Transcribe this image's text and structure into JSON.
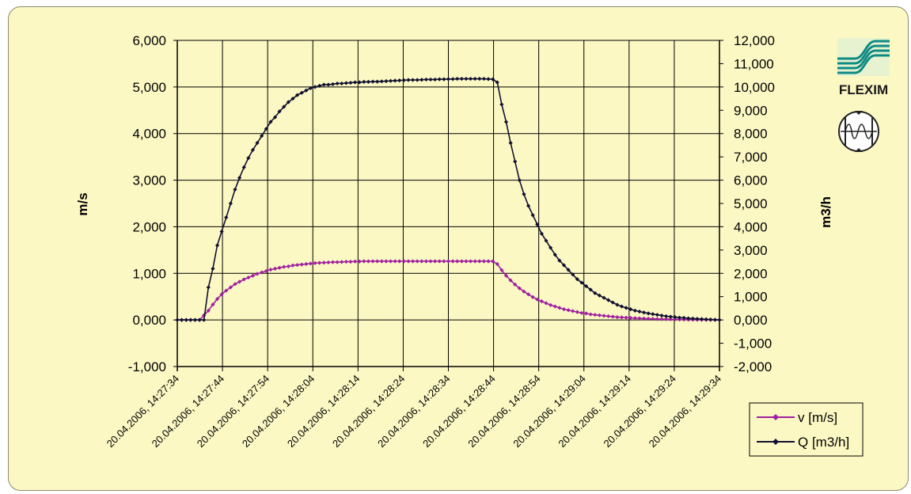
{
  "logo": {
    "brand": "FLEXIM"
  },
  "chart_data": {
    "type": "line",
    "ylabel": "m/s",
    "y2label": "m3/h",
    "ylim": [
      -1,
      6
    ],
    "y2lim": [
      -2000,
      12000
    ],
    "y_ticks": [
      "-1,000",
      "0,000",
      "1,000",
      "2,000",
      "3,000",
      "4,000",
      "5,000",
      "6,000"
    ],
    "y2_ticks": [
      "-2,000",
      "-1,000",
      "0,000",
      "1,000",
      "2,000",
      "3,000",
      "4,000",
      "5,000",
      "6,000",
      "7,000",
      "8,000",
      "9,000",
      "10,000",
      "11,000",
      "12,000"
    ],
    "x_ticks": [
      "20.04.2006, 14:27:34",
      "20.04.2006, 14:27:44",
      "20.04.2006, 14:27:54",
      "20.04.2006, 14:28:04",
      "20.04.2006, 14:28:14",
      "20.04.2006, 14:28:24",
      "20.04.2006, 14:28:34",
      "20.04.2006, 14:28:44",
      "20.04.2006, 14:28:54",
      "20.04.2006, 14:29:04",
      "20.04.2006, 14:29:14",
      "20.04.2006, 14:29:24",
      "20.04.2006, 14:29:34"
    ],
    "grid": true,
    "legend": "bottom-right",
    "series": [
      {
        "name": "v [m/s]",
        "color": "#a020a0",
        "axis": "left",
        "values": [
          0,
          0,
          0,
          0,
          0,
          0,
          0.1,
          0.2,
          0.33,
          0.45,
          0.55,
          0.63,
          0.7,
          0.77,
          0.82,
          0.87,
          0.91,
          0.95,
          0.99,
          1.02,
          1.05,
          1.08,
          1.1,
          1.12,
          1.14,
          1.15,
          1.17,
          1.18,
          1.19,
          1.2,
          1.21,
          1.22,
          1.225,
          1.23,
          1.235,
          1.24,
          1.24,
          1.245,
          1.25,
          1.25,
          1.255,
          1.255,
          1.26,
          1.26,
          1.26,
          1.26,
          1.26,
          1.26,
          1.26,
          1.26,
          1.26,
          1.26,
          1.26,
          1.26,
          1.26,
          1.26,
          1.26,
          1.26,
          1.26,
          1.26,
          1.26,
          1.26,
          1.26,
          1.26,
          1.26,
          1.26,
          1.26,
          1.26,
          1.26,
          1.26,
          1.26,
          1.26,
          1.2,
          1.07,
          0.95,
          0.85,
          0.76,
          0.68,
          0.61,
          0.55,
          0.49,
          0.44,
          0.4,
          0.36,
          0.32,
          0.29,
          0.26,
          0.23,
          0.21,
          0.19,
          0.17,
          0.15,
          0.14,
          0.12,
          0.11,
          0.1,
          0.09,
          0.08,
          0.07,
          0.06,
          0.055,
          0.05,
          0.045,
          0.04,
          0.035,
          0.03,
          0.027,
          0.024,
          0.02,
          0.018,
          0.016,
          0.014,
          0.012,
          0.01,
          0.008,
          0.007,
          0.006,
          0.005,
          0.004,
          0.003,
          0.002,
          0.001,
          0
        ]
      },
      {
        "name": "Q [m3/h]",
        "color": "#101030",
        "axis": "right",
        "values": [
          0,
          0,
          0,
          0,
          0,
          0,
          0,
          1400,
          2200,
          3200,
          3800,
          4400,
          5000,
          5600,
          6100,
          6550,
          6950,
          7300,
          7600,
          7900,
          8200,
          8500,
          8700,
          8950,
          9150,
          9350,
          9500,
          9650,
          9750,
          9850,
          9950,
          10000,
          10050,
          10100,
          10100,
          10120,
          10150,
          10150,
          10170,
          10180,
          10200,
          10200,
          10220,
          10220,
          10230,
          10230,
          10240,
          10250,
          10260,
          10270,
          10280,
          10290,
          10300,
          10300,
          10300,
          10310,
          10320,
          10320,
          10320,
          10330,
          10330,
          10340,
          10340,
          10350,
          10350,
          10350,
          10350,
          10350,
          10350,
          10350,
          10340,
          10330,
          10200,
          9250,
          8500,
          7600,
          6800,
          6000,
          5400,
          4900,
          4500,
          4100,
          3700,
          3400,
          3100,
          2800,
          2550,
          2350,
          2150,
          1950,
          1750,
          1600,
          1450,
          1300,
          1150,
          1050,
          950,
          850,
          750,
          650,
          580,
          520,
          460,
          400,
          360,
          320,
          280,
          250,
          220,
          190,
          160,
          140,
          120,
          100,
          90,
          70,
          60,
          50,
          40,
          30,
          20,
          10,
          0
        ]
      }
    ]
  }
}
